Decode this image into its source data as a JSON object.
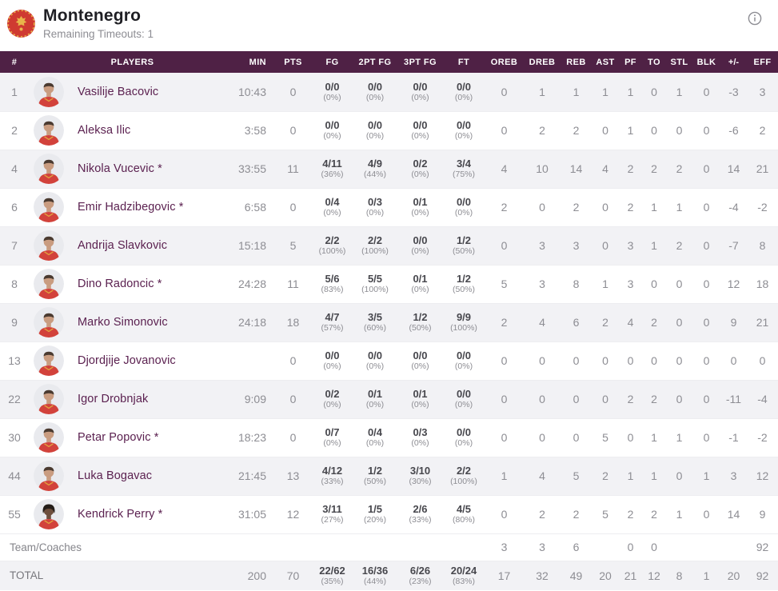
{
  "header": {
    "team_name": "Montenegro",
    "subtitle": "Remaining Timeouts: 1"
  },
  "colors": {
    "table_header_bg": "#4f2145",
    "player_name": "#5b2150",
    "row_alt_bg": "#f2f2f5",
    "logo_red": "#cf3a31",
    "logo_gold": "#e8b54a",
    "jersey_red": "#d2423b"
  },
  "table": {
    "columns": [
      "#",
      "PLAYERS",
      "MIN",
      "PTS",
      "FG",
      "2PT FG",
      "3PT FG",
      "FT",
      "OREB",
      "DREB",
      "REB",
      "AST",
      "PF",
      "TO",
      "STL",
      "BLK",
      "+/-",
      "EFF"
    ],
    "players": [
      {
        "number": "1",
        "name": "Vasilije Bacovic",
        "min": "10:43",
        "pts": "0",
        "fg": "0/0",
        "fg_pct": "(0%)",
        "fg2": "0/0",
        "fg2_pct": "(0%)",
        "fg3": "0/0",
        "fg3_pct": "(0%)",
        "ft": "0/0",
        "ft_pct": "(0%)",
        "oreb": "0",
        "dreb": "1",
        "reb": "1",
        "ast": "1",
        "pf": "1",
        "to": "0",
        "stl": "1",
        "blk": "0",
        "pm": "-3",
        "eff": "3",
        "skin": "light"
      },
      {
        "number": "2",
        "name": "Aleksa Ilic",
        "min": "3:58",
        "pts": "0",
        "fg": "0/0",
        "fg_pct": "(0%)",
        "fg2": "0/0",
        "fg2_pct": "(0%)",
        "fg3": "0/0",
        "fg3_pct": "(0%)",
        "ft": "0/0",
        "ft_pct": "(0%)",
        "oreb": "0",
        "dreb": "2",
        "reb": "2",
        "ast": "0",
        "pf": "1",
        "to": "0",
        "stl": "0",
        "blk": "0",
        "pm": "-6",
        "eff": "2",
        "skin": "light"
      },
      {
        "number": "4",
        "name": "Nikola Vucevic *",
        "min": "33:55",
        "pts": "11",
        "fg": "4/11",
        "fg_pct": "(36%)",
        "fg2": "4/9",
        "fg2_pct": "(44%)",
        "fg3": "0/2",
        "fg3_pct": "(0%)",
        "ft": "3/4",
        "ft_pct": "(75%)",
        "oreb": "4",
        "dreb": "10",
        "reb": "14",
        "ast": "4",
        "pf": "2",
        "to": "2",
        "stl": "2",
        "blk": "0",
        "pm": "14",
        "eff": "21",
        "skin": "light"
      },
      {
        "number": "6",
        "name": "Emir Hadzibegovic *",
        "min": "6:58",
        "pts": "0",
        "fg": "0/4",
        "fg_pct": "(0%)",
        "fg2": "0/3",
        "fg2_pct": "(0%)",
        "fg3": "0/1",
        "fg3_pct": "(0%)",
        "ft": "0/0",
        "ft_pct": "(0%)",
        "oreb": "2",
        "dreb": "0",
        "reb": "2",
        "ast": "0",
        "pf": "2",
        "to": "1",
        "stl": "1",
        "blk": "0",
        "pm": "-4",
        "eff": "-2",
        "skin": "light"
      },
      {
        "number": "7",
        "name": "Andrija Slavkovic",
        "min": "15:18",
        "pts": "5",
        "fg": "2/2",
        "fg_pct": "(100%)",
        "fg2": "2/2",
        "fg2_pct": "(100%)",
        "fg3": "0/0",
        "fg3_pct": "(0%)",
        "ft": "1/2",
        "ft_pct": "(50%)",
        "oreb": "0",
        "dreb": "3",
        "reb": "3",
        "ast": "0",
        "pf": "3",
        "to": "1",
        "stl": "2",
        "blk": "0",
        "pm": "-7",
        "eff": "8",
        "skin": "light"
      },
      {
        "number": "8",
        "name": "Dino Radoncic *",
        "min": "24:28",
        "pts": "11",
        "fg": "5/6",
        "fg_pct": "(83%)",
        "fg2": "5/5",
        "fg2_pct": "(100%)",
        "fg3": "0/1",
        "fg3_pct": "(0%)",
        "ft": "1/2",
        "ft_pct": "(50%)",
        "oreb": "5",
        "dreb": "3",
        "reb": "8",
        "ast": "1",
        "pf": "3",
        "to": "0",
        "stl": "0",
        "blk": "0",
        "pm": "12",
        "eff": "18",
        "skin": "light"
      },
      {
        "number": "9",
        "name": "Marko Simonovic",
        "min": "24:18",
        "pts": "18",
        "fg": "4/7",
        "fg_pct": "(57%)",
        "fg2": "3/5",
        "fg2_pct": "(60%)",
        "fg3": "1/2",
        "fg3_pct": "(50%)",
        "ft": "9/9",
        "ft_pct": "(100%)",
        "oreb": "2",
        "dreb": "4",
        "reb": "6",
        "ast": "2",
        "pf": "4",
        "to": "2",
        "stl": "0",
        "blk": "0",
        "pm": "9",
        "eff": "21",
        "skin": "light"
      },
      {
        "number": "13",
        "name": "Djordjije Jovanovic",
        "min": "",
        "pts": "0",
        "fg": "0/0",
        "fg_pct": "(0%)",
        "fg2": "0/0",
        "fg2_pct": "(0%)",
        "fg3": "0/0",
        "fg3_pct": "(0%)",
        "ft": "0/0",
        "ft_pct": "(0%)",
        "oreb": "0",
        "dreb": "0",
        "reb": "0",
        "ast": "0",
        "pf": "0",
        "to": "0",
        "stl": "0",
        "blk": "0",
        "pm": "0",
        "eff": "0",
        "skin": "light"
      },
      {
        "number": "22",
        "name": "Igor Drobnjak",
        "min": "9:09",
        "pts": "0",
        "fg": "0/2",
        "fg_pct": "(0%)",
        "fg2": "0/1",
        "fg2_pct": "(0%)",
        "fg3": "0/1",
        "fg3_pct": "(0%)",
        "ft": "0/0",
        "ft_pct": "(0%)",
        "oreb": "0",
        "dreb": "0",
        "reb": "0",
        "ast": "0",
        "pf": "2",
        "to": "2",
        "stl": "0",
        "blk": "0",
        "pm": "-11",
        "eff": "-4",
        "skin": "light"
      },
      {
        "number": "30",
        "name": "Petar Popovic *",
        "min": "18:23",
        "pts": "0",
        "fg": "0/7",
        "fg_pct": "(0%)",
        "fg2": "0/4",
        "fg2_pct": "(0%)",
        "fg3": "0/3",
        "fg3_pct": "(0%)",
        "ft": "0/0",
        "ft_pct": "(0%)",
        "oreb": "0",
        "dreb": "0",
        "reb": "0",
        "ast": "5",
        "pf": "0",
        "to": "1",
        "stl": "1",
        "blk": "0",
        "pm": "-1",
        "eff": "-2",
        "skin": "light"
      },
      {
        "number": "44",
        "name": "Luka Bogavac",
        "min": "21:45",
        "pts": "13",
        "fg": "4/12",
        "fg_pct": "(33%)",
        "fg2": "1/2",
        "fg2_pct": "(50%)",
        "fg3": "3/10",
        "fg3_pct": "(30%)",
        "ft": "2/2",
        "ft_pct": "(100%)",
        "oreb": "1",
        "dreb": "4",
        "reb": "5",
        "ast": "2",
        "pf": "1",
        "to": "1",
        "stl": "0",
        "blk": "1",
        "pm": "3",
        "eff": "12",
        "skin": "light"
      },
      {
        "number": "55",
        "name": "Kendrick Perry *",
        "min": "31:05",
        "pts": "12",
        "fg": "3/11",
        "fg_pct": "(27%)",
        "fg2": "1/5",
        "fg2_pct": "(20%)",
        "fg3": "2/6",
        "fg3_pct": "(33%)",
        "ft": "4/5",
        "ft_pct": "(80%)",
        "oreb": "0",
        "dreb": "2",
        "reb": "2",
        "ast": "5",
        "pf": "2",
        "to": "2",
        "stl": "1",
        "blk": "0",
        "pm": "14",
        "eff": "9",
        "skin": "dark"
      }
    ],
    "team_row": {
      "label": "Team/Coaches",
      "oreb": "3",
      "dreb": "3",
      "reb": "6",
      "ast": "",
      "pf": "0",
      "to": "0",
      "stl": "",
      "blk": "",
      "pm": "",
      "eff": "92"
    },
    "total_row": {
      "label": "TOTAL",
      "min": "200",
      "pts": "70",
      "fg": "22/62",
      "fg_pct": "(35%)",
      "fg2": "16/36",
      "fg2_pct": "(44%)",
      "fg3": "6/26",
      "fg3_pct": "(23%)",
      "ft": "20/24",
      "ft_pct": "(83%)",
      "oreb": "17",
      "dreb": "32",
      "reb": "49",
      "ast": "20",
      "pf": "21",
      "to": "12",
      "stl": "8",
      "blk": "1",
      "pm": "20",
      "eff": "92"
    }
  }
}
